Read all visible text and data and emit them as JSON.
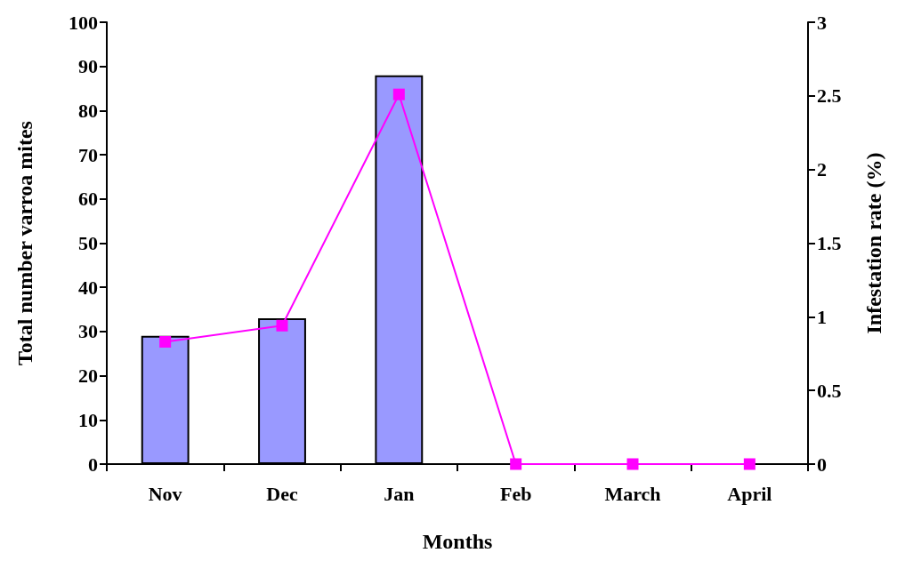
{
  "chart_data": {
    "type": "bar",
    "xlabel": "Months",
    "ylabel": "Total number varroa mites",
    "y2label": "Infestation rate (%)",
    "categories": [
      "Nov",
      "Dec",
      "Jan",
      "Feb",
      "March",
      "April"
    ],
    "series": [
      {
        "color": "#9999ff",
        "values": [
          29,
          33,
          88,
          0,
          0,
          0
        ]
      },
      {
        "type": "line",
        "axis": "y2",
        "color": "#ff00ff",
        "marker": "square",
        "values": [
          0.83,
          0.94,
          2.51,
          0,
          0,
          0
        ]
      }
    ],
    "ylim": [
      0,
      100
    ],
    "yticks": [
      0,
      10,
      20,
      30,
      40,
      50,
      60,
      70,
      80,
      90,
      100
    ],
    "y2lim": [
      0,
      3
    ],
    "y2ticks": [
      0,
      0.5,
      1,
      1.5,
      2,
      2.5,
      3
    ],
    "grid": false
  }
}
